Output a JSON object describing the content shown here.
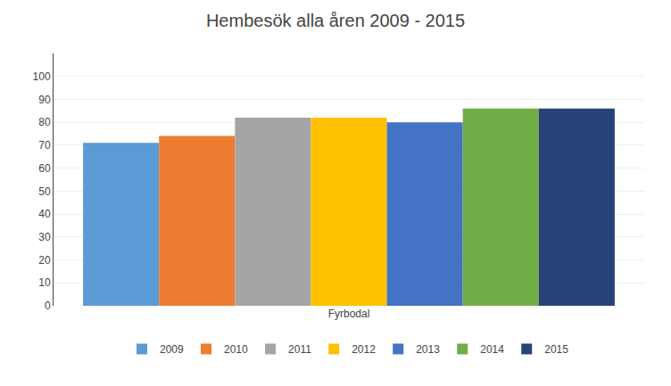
{
  "chart_data": {
    "type": "bar",
    "title": "Hembesök alla åren 2009 - 2015",
    "categories": [
      "Fyrbodal"
    ],
    "series": [
      {
        "name": "2009",
        "color": "#5B9BD5",
        "values": [
          71
        ]
      },
      {
        "name": "2010",
        "color": "#ED7D31",
        "values": [
          74
        ]
      },
      {
        "name": "2011",
        "color": "#A5A5A5",
        "values": [
          82
        ]
      },
      {
        "name": "2012",
        "color": "#FFC000",
        "values": [
          82
        ]
      },
      {
        "name": "2013",
        "color": "#4472C4",
        "values": [
          80
        ]
      },
      {
        "name": "2014",
        "color": "#70AD47",
        "values": [
          86
        ]
      },
      {
        "name": "2015",
        "color": "#264478",
        "values": [
          86
        ]
      }
    ],
    "ylim": [
      0,
      110
    ],
    "yticks": [
      0,
      10,
      20,
      30,
      40,
      50,
      60,
      70,
      80,
      90,
      100
    ],
    "grid": true,
    "legend": "bottom"
  }
}
